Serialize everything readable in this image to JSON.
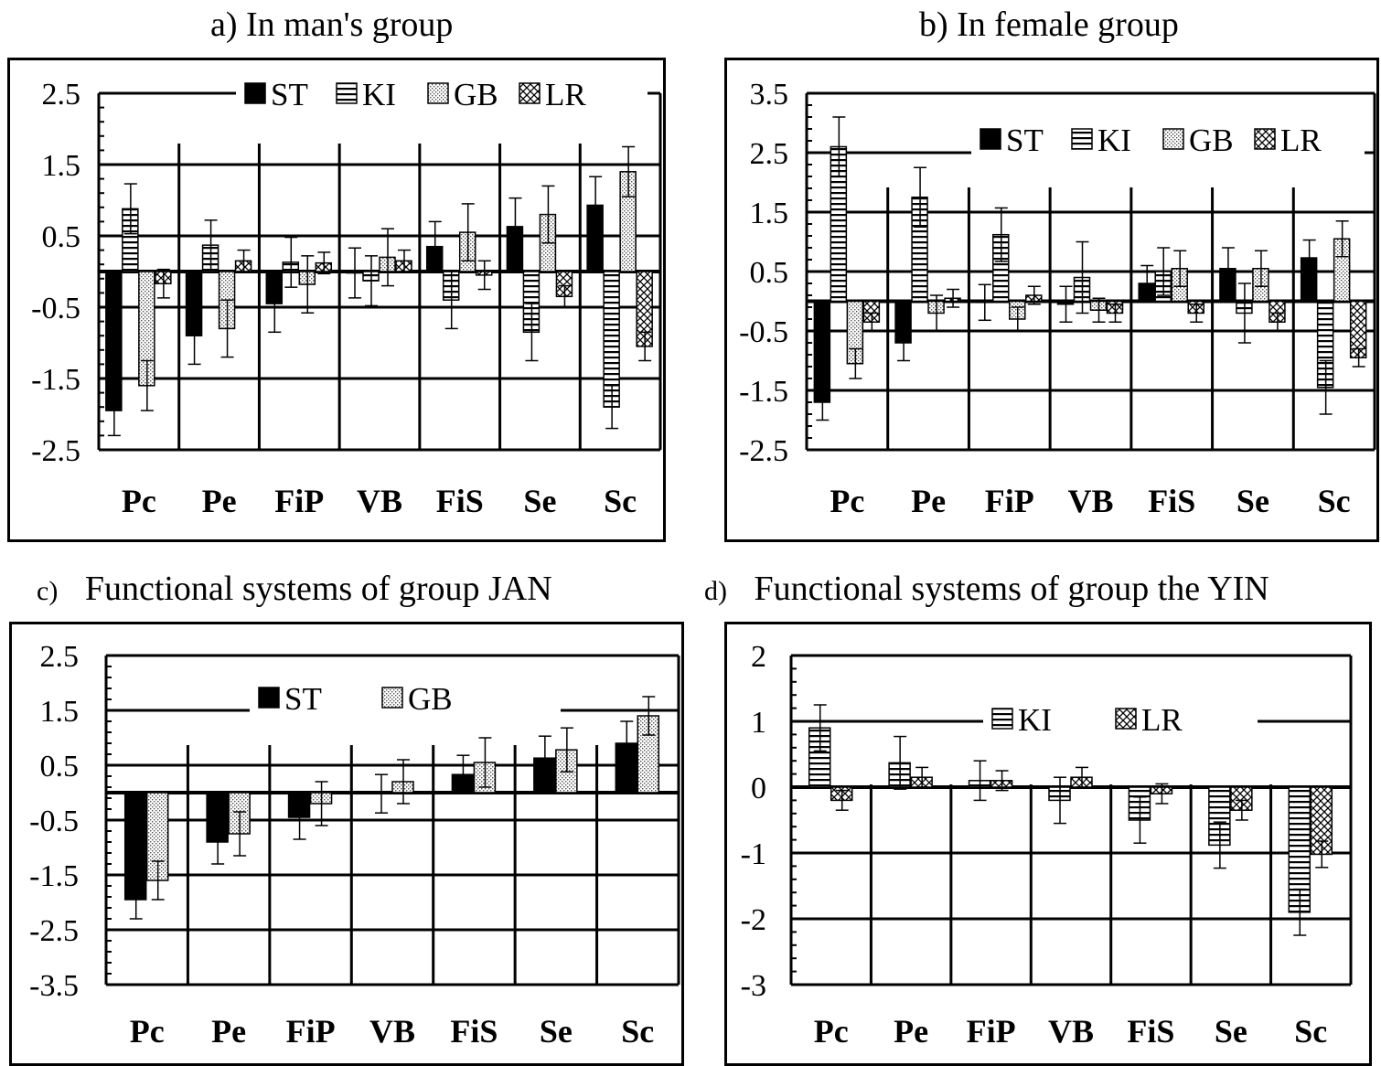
{
  "panels": [
    {
      "title_letter": "a)",
      "title": "In man's group",
      "chart_data": {
        "type": "bar",
        "title": "In man's group",
        "categories": [
          "Pc",
          "Pe",
          "FiP",
          "VB",
          "FiS",
          "Se",
          "Sc"
        ],
        "ylim": [
          -2.5,
          2.5
        ],
        "yticks": [
          "2.5",
          "1.5",
          "0.5",
          "-0.5",
          "-1.5",
          "-2.5"
        ],
        "grid": true,
        "legend_position": "top",
        "series": [
          {
            "name": "ST",
            "values": [
              -1.95,
              -0.9,
              -0.45,
              -0.02,
              0.35,
              0.63,
              0.93
            ],
            "errors": [
              0.35,
              0.4,
              0.4,
              0.35,
              0.35,
              0.4,
              0.4
            ]
          },
          {
            "name": "KI",
            "values": [
              0.88,
              0.37,
              0.13,
              -0.13,
              -0.4,
              -0.85,
              -1.9
            ],
            "errors": [
              0.35,
              0.35,
              0.35,
              0.35,
              0.4,
              0.4,
              0.3
            ]
          },
          {
            "name": "GB",
            "values": [
              -1.6,
              -0.8,
              -0.18,
              0.2,
              0.55,
              0.8,
              1.4
            ],
            "errors": [
              0.35,
              0.4,
              0.4,
              0.4,
              0.4,
              0.4,
              0.35
            ]
          },
          {
            "name": "LR",
            "values": [
              -0.17,
              0.15,
              0.12,
              0.15,
              -0.05,
              -0.35,
              -1.05
            ],
            "errors": [
              0.2,
              0.15,
              0.15,
              0.15,
              0.2,
              0.15,
              0.2
            ]
          }
        ]
      }
    },
    {
      "title_letter": "b)",
      "title": "In female group",
      "chart_data": {
        "type": "bar",
        "title": "In female group",
        "categories": [
          "Pc",
          "Pe",
          "FiP",
          "VB",
          "FiS",
          "Se",
          "Sc"
        ],
        "ylim": [
          -2.5,
          3.5
        ],
        "yticks": [
          "3.5",
          "2.5",
          "1.5",
          "0.5",
          "-0.5",
          "-1.5",
          "-2.5"
        ],
        "grid": true,
        "legend_position": "top-right",
        "series": [
          {
            "name": "ST",
            "values": [
              -1.7,
              -0.7,
              -0.02,
              -0.05,
              0.3,
              0.55,
              0.73
            ],
            "errors": [
              0.3,
              0.3,
              0.3,
              0.3,
              0.3,
              0.35,
              0.3
            ]
          },
          {
            "name": "KI",
            "values": [
              2.6,
              1.75,
              1.12,
              0.4,
              0.5,
              -0.2,
              -1.45
            ],
            "errors": [
              0.5,
              0.5,
              0.45,
              0.6,
              0.4,
              0.5,
              0.45
            ]
          },
          {
            "name": "GB",
            "values": [
              -1.05,
              -0.2,
              -0.3,
              -0.15,
              0.55,
              0.55,
              1.05
            ],
            "errors": [
              0.25,
              0.3,
              0.2,
              0.2,
              0.3,
              0.3,
              0.3
            ]
          },
          {
            "name": "LR",
            "values": [
              -0.35,
              0.05,
              0.1,
              -0.2,
              -0.2,
              -0.35,
              -0.95
            ],
            "errors": [
              0.15,
              0.15,
              0.15,
              0.15,
              0.15,
              0.15,
              0.15
            ]
          }
        ]
      }
    },
    {
      "title_letter": "c)",
      "title": "Functional systems of group JAN",
      "chart_data": {
        "type": "bar",
        "title": "Functional systems of group JAN",
        "categories": [
          "Pc",
          "Pe",
          "FiP",
          "VB",
          "FiS",
          "Se",
          "Sc"
        ],
        "ylim": [
          -3.5,
          2.5
        ],
        "yticks": [
          "2.5",
          "1.5",
          "0.5",
          "-0.5",
          "-1.5",
          "-2.5",
          "-3.5"
        ],
        "grid": true,
        "legend_position": "top",
        "series": [
          {
            "name": "ST",
            "values": [
              -1.95,
              -0.9,
              -0.45,
              -0.02,
              0.33,
              0.63,
              0.9
            ],
            "errors": [
              0.35,
              0.4,
              0.4,
              0.35,
              0.35,
              0.4,
              0.4
            ]
          },
          {
            "name": "GB",
            "values": [
              -1.6,
              -0.75,
              -0.2,
              0.2,
              0.55,
              0.78,
              1.4
            ],
            "errors": [
              0.35,
              0.4,
              0.4,
              0.4,
              0.45,
              0.4,
              0.35
            ]
          }
        ]
      }
    },
    {
      "title_letter": "d)",
      "title": "Functional systems of group the YIN",
      "chart_data": {
        "type": "bar",
        "title": "Functional systems of group the YIN",
        "categories": [
          "Pc",
          "Pe",
          "FiP",
          "VB",
          "FiS",
          "Se",
          "Sc"
        ],
        "ylim": [
          -3,
          2
        ],
        "yticks": [
          "2",
          "1",
          "0",
          "-1",
          "-2",
          "-3"
        ],
        "grid": true,
        "legend_position": "top",
        "series": [
          {
            "name": "KI",
            "values": [
              0.9,
              0.37,
              0.1,
              -0.2,
              -0.5,
              -0.88,
              -1.9
            ],
            "errors": [
              0.35,
              0.4,
              0.3,
              0.35,
              0.35,
              0.35,
              0.35
            ]
          },
          {
            "name": "LR",
            "values": [
              -0.2,
              0.15,
              0.1,
              0.15,
              -0.1,
              -0.35,
              -1.02
            ],
            "errors": [
              0.15,
              0.15,
              0.15,
              0.15,
              0.15,
              0.15,
              0.2
            ]
          }
        ]
      }
    }
  ]
}
